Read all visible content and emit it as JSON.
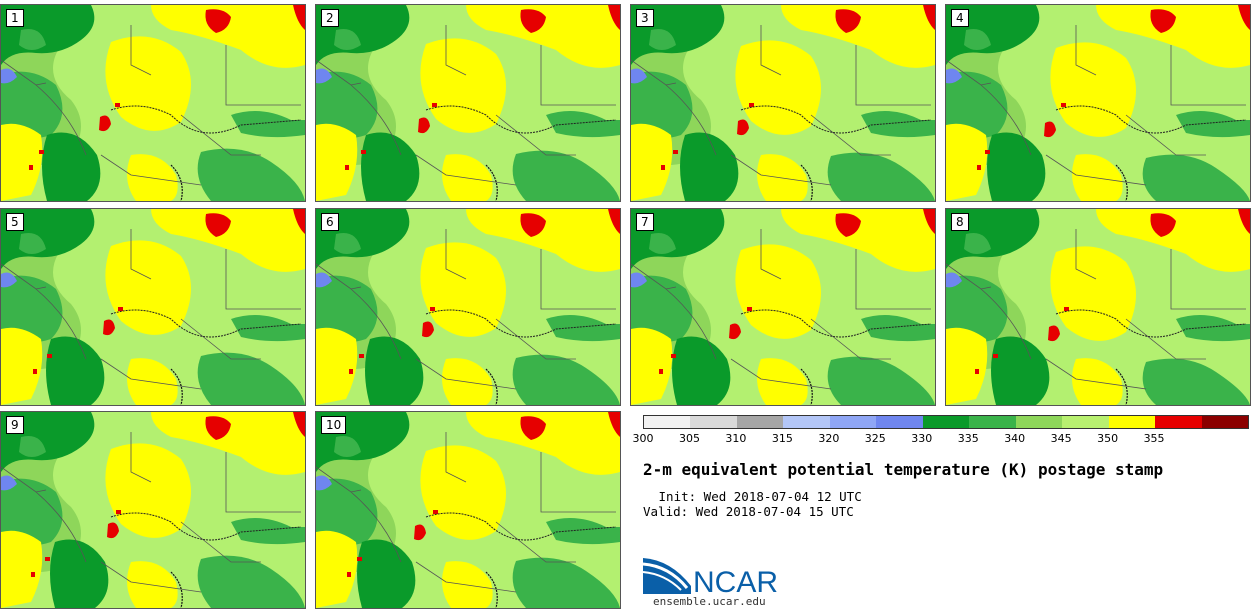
{
  "stamps": [
    {
      "label": "1"
    },
    {
      "label": "2"
    },
    {
      "label": "3"
    },
    {
      "label": "4"
    },
    {
      "label": "5"
    },
    {
      "label": "6"
    },
    {
      "label": "7"
    },
    {
      "label": "8"
    },
    {
      "label": "9"
    },
    {
      "label": "10"
    }
  ],
  "colorbar": {
    "colors": [
      "#f2f2f2",
      "#d9d9d9",
      "#a6a6a6",
      "#b3c6f7",
      "#8fa6f5",
      "#6f86ef",
      "#0a9a2a",
      "#3ab34a",
      "#8ed65a",
      "#b8f070",
      "#ffff00",
      "#e60000",
      "#8b0000"
    ],
    "ticks": [
      "300",
      "305",
      "310",
      "315",
      "320",
      "325",
      "330",
      "335",
      "340",
      "345",
      "350",
      "355"
    ]
  },
  "map_colors": {
    "base": "#b3f070",
    "lightgreen": "#8ed65a",
    "green": "#3ab34a",
    "darkgreen": "#0a9a2a",
    "yellow": "#ffff00",
    "red": "#e60000",
    "blue": "#6f86ef"
  },
  "title": "2-m equivalent potential temperature (K) postage stamp",
  "init_line": " Init: Wed 2018-07-04 12 UTC",
  "valid_line": "Valid: Wed 2018-07-04 15 UTC",
  "logo": {
    "text": "NCAR",
    "url": "ensemble.ucar.edu"
  }
}
